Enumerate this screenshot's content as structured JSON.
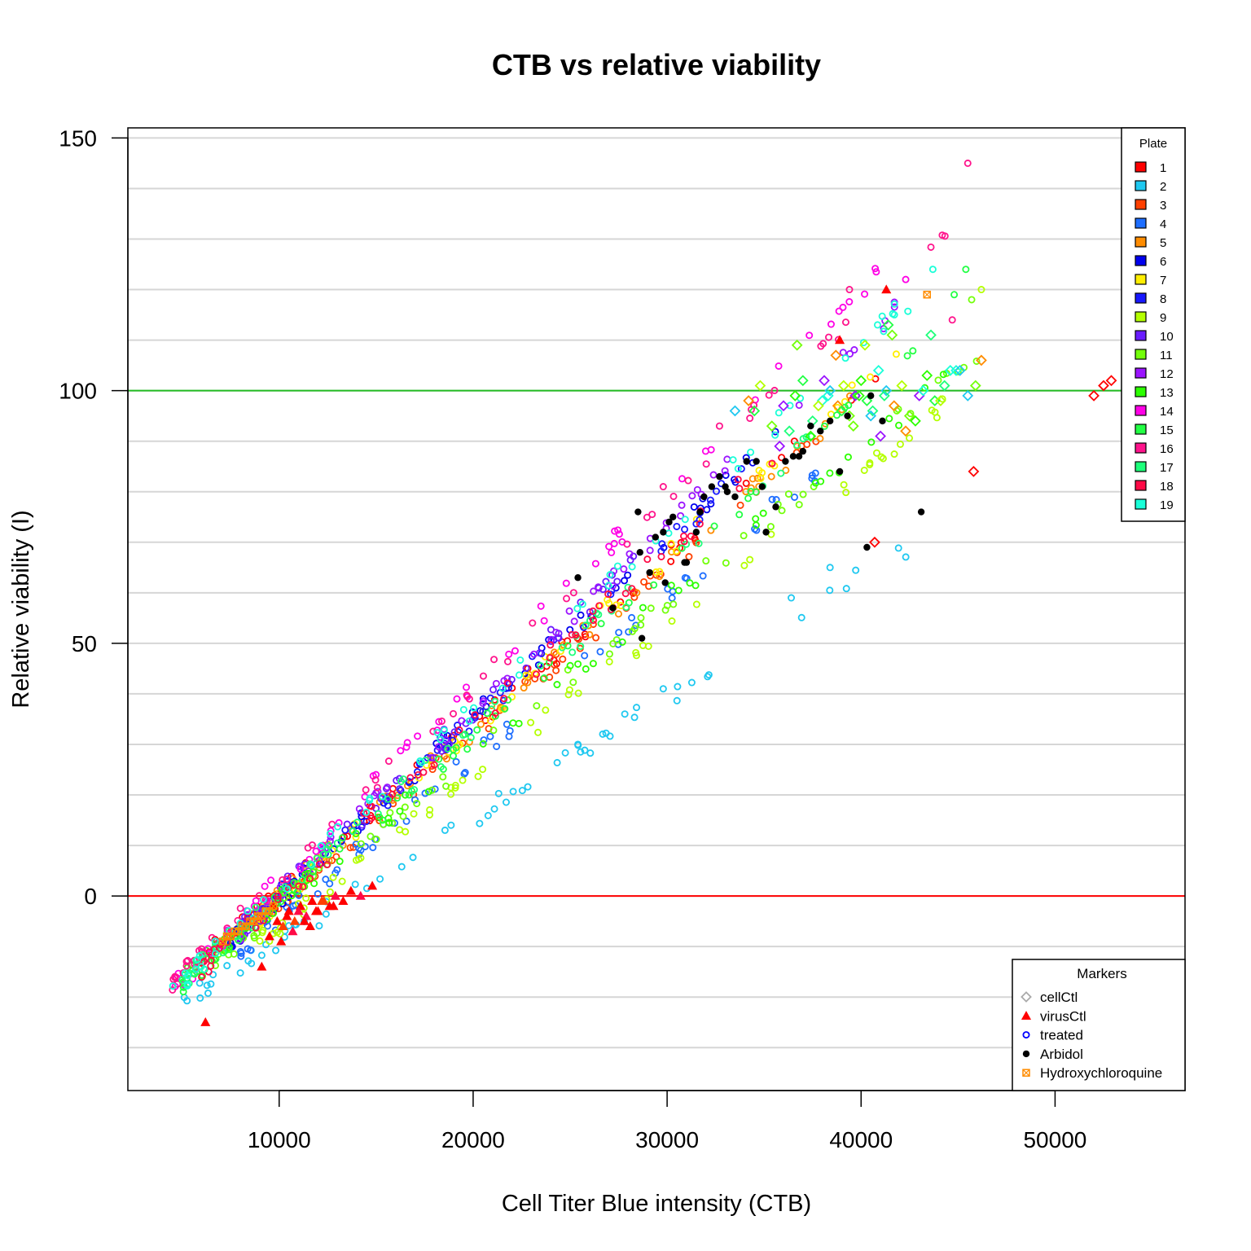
{
  "chart_data": {
    "type": "scatter",
    "title": "CTB vs relative viability",
    "xlabel": "Cell Titer Blue intensity (CTB)",
    "ylabel": "Relative viability (I)",
    "xlim": [
      2200,
      56700
    ],
    "ylim": [
      -38.5,
      152
    ],
    "x_ticks": [
      "10000",
      "20000",
      "30000",
      "40000",
      "50000"
    ],
    "x_tick_values": [
      10000,
      20000,
      30000,
      40000,
      50000
    ],
    "y_ticks": [
      "0",
      "50",
      "100",
      "150"
    ],
    "y_tick_values": [
      0,
      50,
      100,
      150
    ],
    "y_minor_gridlines": [
      -30,
      -20,
      -10,
      0,
      10,
      20,
      30,
      40,
      50,
      60,
      70,
      80,
      90,
      100,
      110,
      120,
      130,
      140,
      150
    ],
    "grid": "horizontal",
    "reference_lines": [
      {
        "y": 100,
        "color": "#22bb22"
      },
      {
        "y": 0,
        "color": "#ff0000"
      }
    ],
    "plate_legend": {
      "title": "Plate",
      "position": "top-right",
      "entries": [
        {
          "label": "1",
          "color": "#ff0000"
        },
        {
          "label": "2",
          "color": "#1fc8f0"
        },
        {
          "label": "3",
          "color": "#ff4000"
        },
        {
          "label": "4",
          "color": "#1e6eff"
        },
        {
          "label": "5",
          "color": "#ff8c00"
        },
        {
          "label": "6",
          "color": "#0000ee"
        },
        {
          "label": "7",
          "color": "#ffee00"
        },
        {
          "label": "8",
          "color": "#1818ff"
        },
        {
          "label": "9",
          "color": "#b4ff00"
        },
        {
          "label": "10",
          "color": "#6a1cff"
        },
        {
          "label": "11",
          "color": "#73ff0a"
        },
        {
          "label": "12",
          "color": "#9b14ff"
        },
        {
          "label": "13",
          "color": "#2cff00"
        },
        {
          "label": "14",
          "color": "#ff00e6"
        },
        {
          "label": "15",
          "color": "#22ff44"
        },
        {
          "label": "16",
          "color": "#ff148c"
        },
        {
          "label": "17",
          "color": "#1dff7a"
        },
        {
          "label": "18",
          "color": "#ff0a46"
        },
        {
          "label": "19",
          "color": "#1affd8"
        }
      ]
    },
    "marker_legend": {
      "title": "Markers",
      "position": "bottom-right",
      "entries": [
        {
          "label": "cellCtl",
          "shape": "diamond",
          "color": "#aaaaaa"
        },
        {
          "label": "virusCtl",
          "shape": "triangle",
          "color": "#ff0000"
        },
        {
          "label": "treated",
          "shape": "circle",
          "color": "#0000ff"
        },
        {
          "label": "Arbidol",
          "shape": "dot",
          "color": "#000000"
        },
        {
          "label": "Hydroxychloroquine",
          "shape": "square-x",
          "color": "#ff8c00"
        }
      ]
    },
    "series": [
      {
        "name": "cellCtl",
        "shape": "diamond",
        "color": "#aaaaaa",
        "x": [
          33500,
          34200,
          34800,
          35400,
          36000,
          36600,
          37000,
          37500,
          38000,
          38400,
          38800,
          39100,
          39400,
          39700,
          40000,
          40300,
          40600,
          40900,
          41300,
          41700,
          42100,
          42500,
          43000,
          43400,
          43800,
          44300,
          44900,
          45500,
          46200,
          37800,
          39600,
          41000,
          42800,
          34500,
          36300,
          38300,
          40500,
          42300,
          44100,
          45900,
          35800,
          37400,
          39000,
          41200,
          43200,
          45100,
          38700,
          40200,
          41600,
          52000,
          52500,
          52900,
          40700,
          45800,
          36700,
          38100,
          39900,
          41400,
          43600,
          44600
        ],
        "y": [
          96,
          98,
          101,
          93,
          97,
          99,
          102,
          94,
          98,
          100,
          97,
          101,
          95,
          99,
          102,
          98,
          96,
          104,
          100,
          97,
          101,
          95,
          99,
          103,
          98,
          101,
          104,
          99,
          106,
          97,
          93,
          91,
          94,
          96,
          92,
          99,
          95,
          92,
          98,
          101,
          89,
          91,
          96,
          99,
          100,
          104,
          107,
          109,
          111,
          99,
          101,
          102,
          70,
          84,
          109,
          102,
          99,
          113,
          111,
          104
        ],
        "colors": [
          2,
          5,
          9,
          11,
          12,
          13,
          15,
          17,
          19,
          2,
          5,
          9,
          11,
          12,
          13,
          15,
          17,
          19,
          2,
          5,
          9,
          11,
          12,
          13,
          15,
          17,
          19,
          2,
          5,
          9,
          11,
          12,
          13,
          15,
          17,
          19,
          2,
          5,
          9,
          11,
          12,
          13,
          15,
          17,
          19,
          2,
          5,
          9,
          11,
          1,
          1,
          1,
          1,
          1,
          11,
          12,
          13,
          15,
          17,
          19
        ]
      },
      {
        "name": "virusCtl",
        "shape": "triangle",
        "color": "#ff0000",
        "x": [
          6200,
          9100,
          9500,
          9900,
          10200,
          10500,
          10800,
          11100,
          11400,
          11700,
          12000,
          12300,
          12600,
          12900,
          13300,
          13700,
          14200,
          14800,
          38900,
          41300,
          9700,
          10400,
          11000,
          11600,
          12200,
          12800,
          10100,
          10700,
          11300,
          11900
        ],
        "y": [
          -25,
          -14,
          -8,
          -5,
          -6,
          -3,
          -5,
          -2,
          -4,
          -1,
          -3,
          -1,
          -2,
          0,
          -1,
          1,
          0,
          2,
          110,
          120,
          -2,
          -4,
          -3,
          -6,
          -1,
          -2,
          -9,
          -7,
          -5,
          -3
        ],
        "colors": [
          1,
          1,
          1,
          1,
          3,
          1,
          3,
          1,
          18,
          1,
          1,
          3,
          1,
          18,
          1,
          1,
          18,
          1,
          1,
          1,
          1,
          1,
          18,
          1,
          3,
          1,
          1,
          18,
          1,
          1
        ]
      },
      {
        "name": "Arbidol",
        "shape": "dot",
        "color": "#000000",
        "x": [
          25400,
          27200,
          28500,
          28700,
          29100,
          29400,
          29900,
          30100,
          30300,
          30900,
          31500,
          31900,
          32300,
          32700,
          33100,
          33500,
          34100,
          34600,
          35100,
          35600,
          36100,
          36500,
          37000,
          37400,
          37900,
          38400,
          38900,
          39300,
          40500,
          41100,
          43100,
          40300,
          31000,
          28600,
          29800,
          31700,
          33000,
          34900,
          36800
        ],
        "y": [
          63,
          57,
          76,
          51,
          64,
          71,
          62,
          74,
          75,
          66,
          72,
          79,
          81,
          83,
          80,
          79,
          86,
          86,
          72,
          77,
          86,
          87,
          88,
          93,
          92,
          94,
          84,
          95,
          99,
          94,
          76,
          69,
          66,
          68,
          72,
          76,
          81,
          81,
          87
        ],
        "colors": [
          0,
          0,
          0,
          0,
          0,
          0,
          0,
          0,
          0,
          0,
          0,
          0,
          0,
          0,
          0,
          0,
          0,
          0,
          0,
          0,
          0,
          0,
          0,
          0,
          0,
          0,
          0,
          0,
          0,
          0,
          0,
          0,
          0,
          0,
          0,
          0,
          0,
          0,
          0
        ]
      },
      {
        "name": "Hydroxychloroquine",
        "shape": "square-x",
        "color": "#ff8c00",
        "x": [
          7100,
          7300,
          7500,
          7700,
          7900,
          8100,
          8300,
          8500,
          8700,
          8900,
          9100,
          9300,
          9500,
          9700,
          43400
        ],
        "y": [
          -9,
          -8,
          -8,
          -7,
          -7,
          -6,
          -6,
          -5,
          -5,
          -4,
          -4,
          -3,
          -3,
          -2,
          119
        ],
        "colors": [
          5,
          5,
          5,
          5,
          5,
          5,
          5,
          5,
          5,
          5,
          5,
          5,
          5,
          5,
          5
        ]
      },
      {
        "name": "treated",
        "shape": "circle",
        "color": "#0000ff",
        "generator": {
          "note": "per-plate linear trends with noise",
          "count": 1200
        },
        "plates": [
          {
            "plate": 1,
            "slope": 0.00331,
            "intercept": -32.5,
            "xmin": 6000,
            "xmax": 41000
          },
          {
            "plate": 2,
            "slope": 0.00241,
            "intercept": -33.0,
            "xmin": 5000,
            "xmax": 43800
          },
          {
            "plate": 3,
            "slope": 0.0033,
            "intercept": -34.0,
            "xmin": 9000,
            "xmax": 38000
          },
          {
            "plate": 4,
            "slope": 0.00318,
            "intercept": -36.0,
            "xmin": 8000,
            "xmax": 39500
          },
          {
            "plate": 5,
            "slope": 0.0033,
            "intercept": -33.0,
            "xmin": 7000,
            "xmax": 40000
          },
          {
            "plate": 6,
            "slope": 0.00357,
            "intercept": -36.0,
            "xmin": 7500,
            "xmax": 37000
          },
          {
            "plate": 7,
            "slope": 0.0034,
            "intercept": -34.5,
            "xmin": 9000,
            "xmax": 43000
          },
          {
            "plate": 8,
            "slope": 0.0035,
            "intercept": -35.0,
            "xmin": 8000,
            "xmax": 34000
          },
          {
            "plate": 9,
            "slope": 0.003,
            "intercept": -36.0,
            "xmin": 9000,
            "xmax": 46000
          },
          {
            "plate": 10,
            "slope": 0.0036,
            "intercept": -35.5,
            "xmin": 8000,
            "xmax": 30000
          },
          {
            "plate": 11,
            "slope": 0.00305,
            "intercept": -33.0,
            "xmin": 6000,
            "xmax": 46000
          },
          {
            "plate": 12,
            "slope": 0.00365,
            "intercept": -36.0,
            "xmin": 8000,
            "xmax": 42000
          },
          {
            "plate": 13,
            "slope": 0.003,
            "intercept": -31.0,
            "xmin": 5000,
            "xmax": 45500
          },
          {
            "plate": 14,
            "slope": 0.0039,
            "intercept": -36.0,
            "xmin": 4500,
            "xmax": 42500
          },
          {
            "plate": 15,
            "slope": 0.0033,
            "intercept": -34.0,
            "xmin": 5000,
            "xmax": 44000
          },
          {
            "plate": 16,
            "slope": 0.00375,
            "intercept": -34.0,
            "xmin": 4500,
            "xmax": 45000
          },
          {
            "plate": 17,
            "slope": 0.0033,
            "intercept": -33.0,
            "xmin": 5000,
            "xmax": 38000
          },
          {
            "plate": 18,
            "slope": 0.00345,
            "intercept": -35.0,
            "xmin": 6000,
            "xmax": 36000
          },
          {
            "plate": 19,
            "slope": 0.0036,
            "intercept": -35.0,
            "xmin": 4500,
            "xmax": 43800
          }
        ],
        "extra_points": [
          {
            "x": 45500,
            "y": 145,
            "plate": 16
          },
          {
            "x": 44700,
            "y": 114,
            "plate": 16
          },
          {
            "x": 39400,
            "y": 120,
            "plate": 16
          },
          {
            "x": 43700,
            "y": 124,
            "plate": 19
          },
          {
            "x": 45400,
            "y": 124,
            "plate": 15
          },
          {
            "x": 46200,
            "y": 120,
            "plate": 9
          },
          {
            "x": 45700,
            "y": 118,
            "plate": 11
          },
          {
            "x": 44800,
            "y": 119,
            "plate": 15
          },
          {
            "x": 42300,
            "y": 122,
            "plate": 14
          },
          {
            "x": 38400,
            "y": 65,
            "plate": 2
          },
          {
            "x": 36400,
            "y": 59,
            "plate": 2
          },
          {
            "x": 29800,
            "y": 41,
            "plate": 2
          },
          {
            "x": 25400,
            "y": 30,
            "plate": 2
          },
          {
            "x": 29800,
            "y": 81,
            "plate": 16
          },
          {
            "x": 32700,
            "y": 93,
            "plate": 16
          }
        ]
      }
    ]
  }
}
